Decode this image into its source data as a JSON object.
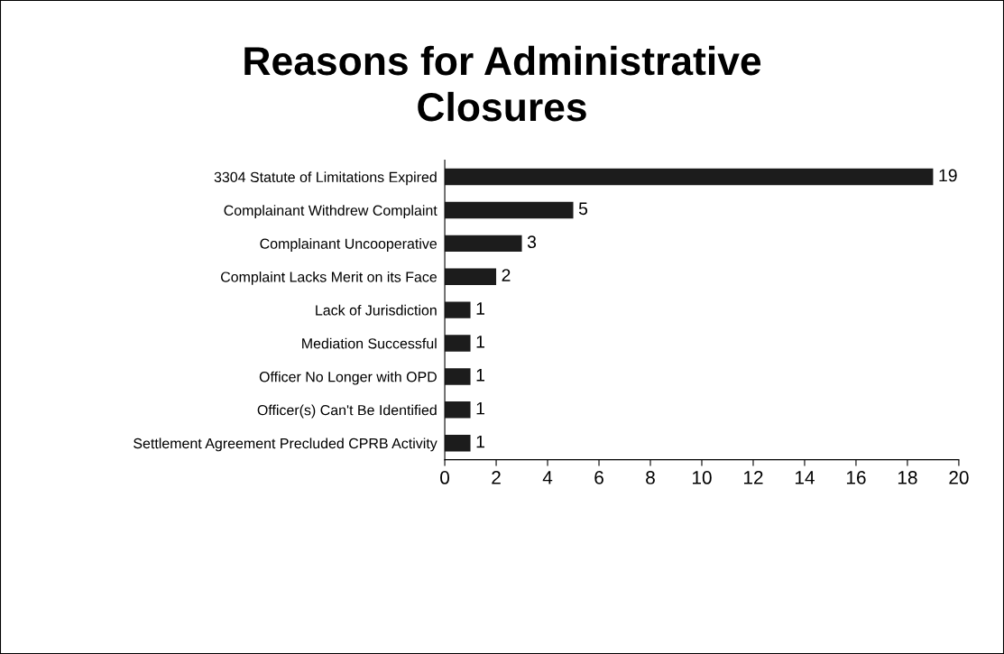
{
  "chart_data": {
    "type": "bar",
    "orientation": "horizontal",
    "title": "Reasons for Administrative\nClosures",
    "categories": [
      "3304 Statute of Limitations Expired",
      "Complainant Withdrew Complaint",
      "Complainant Uncooperative",
      "Complaint Lacks Merit on its Face",
      "Lack of Jurisdiction",
      "Mediation Successful",
      "Officer No Longer with OPD",
      "Officer(s) Can't Be Identified",
      "Settlement Agreement Precluded CPRB Activity"
    ],
    "values": [
      19,
      5,
      3,
      2,
      1,
      1,
      1,
      1,
      1
    ],
    "color": "#1c1c1c",
    "xlim": [
      0,
      20
    ],
    "xticks": [
      0,
      2,
      4,
      6,
      8,
      10,
      12,
      14,
      16,
      18,
      20
    ],
    "data_labels": true,
    "grid": false,
    "legend": false
  }
}
